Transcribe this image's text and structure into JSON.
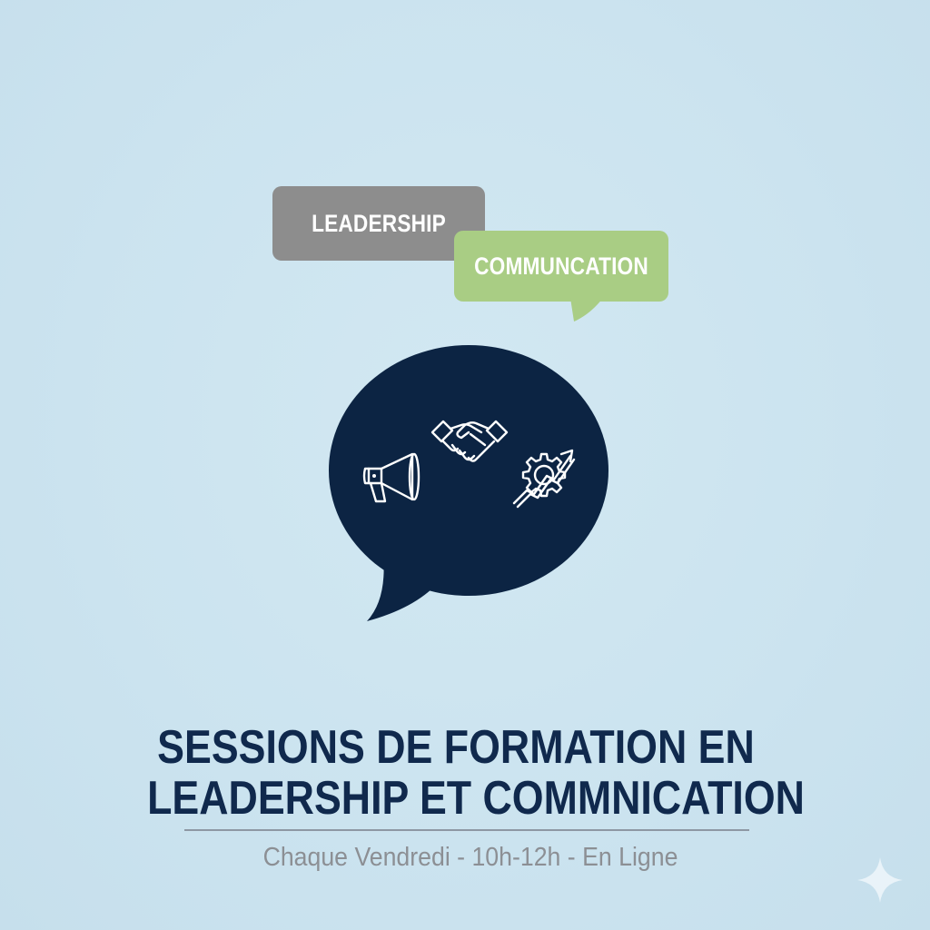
{
  "bubbles": {
    "leadership": {
      "label": "LEADERSHIP",
      "color": "#8d8d8d"
    },
    "communication": {
      "label": "COMMUNCATION",
      "color": "#a9cd84"
    }
  },
  "main_bubble": {
    "color": "#0c2443",
    "icons": [
      "megaphone-icon",
      "handshake-icon",
      "gear-growth-arrow-icon"
    ]
  },
  "title": {
    "line1": "SESSIONS DE FORMATION EN",
    "line2": "LEADERSHIP ET COMMNICATION",
    "color": "#10294d"
  },
  "schedule": "Chaque Vendredi - 10h-12h - En Ligne",
  "colors": {
    "background": "#cbe3ef",
    "divider": "#8d97a3",
    "schedule_text": "#8c8f94"
  }
}
